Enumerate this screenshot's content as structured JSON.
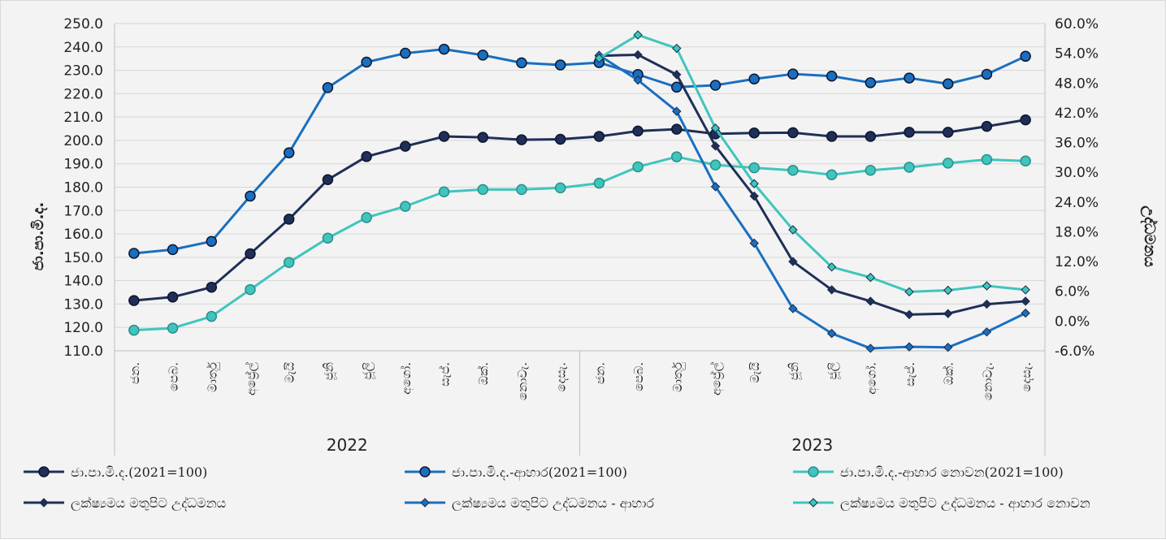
{
  "chart_data": {
    "type": "line",
    "ylabel_left": "ජා.පා.මි.ද.",
    "ylabel_right": "උද්ධමනය",
    "y_left_ticks": [
      "250.0",
      "240.0",
      "230.0",
      "220.0",
      "210.0",
      "200.0",
      "190.0",
      "180.0",
      "170.0",
      "160.0",
      "150.0",
      "140.0",
      "130.0",
      "120.0",
      "110.0"
    ],
    "y_right_ticks": [
      "60.0%",
      "54.0%",
      "48.0%",
      "42.0%",
      "36.0%",
      "30.0%",
      "24.0%",
      "18.0%",
      "12.0%",
      "6.0%",
      "0.0%",
      "-6.0%"
    ],
    "ylim_left": [
      110,
      250
    ],
    "ylim_right": [
      -6,
      60
    ],
    "years": [
      {
        "label": "2022",
        "months": [
          "ජන.",
          "පෙබ.",
          "මාර්තු",
          "අප්‍රේල්",
          "මැයි",
          "ජූනි",
          "ජූලි",
          "අගෝ.",
          "සැප්.",
          "ඔක්.",
          "නොවැ.",
          "දෙසැ."
        ]
      },
      {
        "label": "2023",
        "months": [
          "ජන.",
          "පෙබ.",
          "මාර්තු",
          "අප්‍රේල්",
          "මැයි",
          "ජූනි",
          "ජූලි",
          "අගෝ.",
          "සැප්.",
          "ඔක්.",
          "නොවැ.",
          "දෙසැ."
        ]
      }
    ],
    "series": [
      {
        "name": "ජා.පා.මි.ද.(2021=100)",
        "axis": "left",
        "marker": "circle",
        "color": "#1f2f57",
        "values": [
          131.5,
          133,
          137.2,
          151.5,
          166.3,
          183.2,
          193.1,
          197.5,
          201.7,
          201.3,
          200.3,
          200.5,
          201.7,
          204,
          204.8,
          202.8,
          203.2,
          203.3,
          201.7,
          201.7,
          203.5,
          203.5,
          206,
          208.8
        ]
      },
      {
        "name": "ජා.පා.මි.ද.-ආහාර(2021=100)",
        "axis": "left",
        "marker": "circle",
        "color": "#1a6fbf",
        "values": [
          151.7,
          153.3,
          156.8,
          176.2,
          194.7,
          222.6,
          233.5,
          237.3,
          239,
          236.5,
          233.2,
          232.3,
          233.3,
          228.2,
          222.8,
          223.6,
          226.3,
          228.4,
          227.5,
          224.7,
          226.7,
          224.2,
          228.3,
          236
        ]
      },
      {
        "name": "ජා.පා.මි.ද.-ආහාර නොවන(2021=100)",
        "axis": "left",
        "marker": "circle",
        "color": "#3fc5bd",
        "values": [
          118.8,
          119.7,
          124.7,
          136.2,
          147.8,
          158.2,
          167,
          171.8,
          178,
          179,
          179,
          179.7,
          181.7,
          188.7,
          193,
          189.5,
          188.3,
          187.2,
          185.3,
          187.2,
          188.5,
          190.3,
          191.8,
          191.2
        ]
      },
      {
        "name": "ලක්ෂ්‍යමය මතුපිට උද්ධමනය",
        "axis": "right",
        "marker": "diamond",
        "color": "#1f2f57",
        "offset": 12,
        "values": [
          53.5,
          53.7,
          49.7,
          35.3,
          25.2,
          12.0,
          6.3,
          4.0,
          1.3,
          1.5,
          3.4,
          4.0
        ]
      },
      {
        "name": "ලක්ෂ්‍යමය මතුපිට උද්ධමනය - ආහාර",
        "axis": "right",
        "marker": "diamond",
        "color": "#1a6fbf",
        "offset": 12,
        "values": [
          53.6,
          48.6,
          42.3,
          27.1,
          15.7,
          2.5,
          -2.5,
          -5.5,
          -5.2,
          -5.3,
          -2.2,
          1.6
        ]
      },
      {
        "name": "ලක්ෂ්‍යමය මතුපිට උද්ධමනය - ආහාර නොවන",
        "axis": "right",
        "marker": "diamond",
        "color": "#3fc5bd",
        "offset": 12,
        "values": [
          53.0,
          57.7,
          55.0,
          38.9,
          27.7,
          18.4,
          10.9,
          8.8,
          5.9,
          6.2,
          7.1,
          6.3
        ]
      }
    ]
  }
}
